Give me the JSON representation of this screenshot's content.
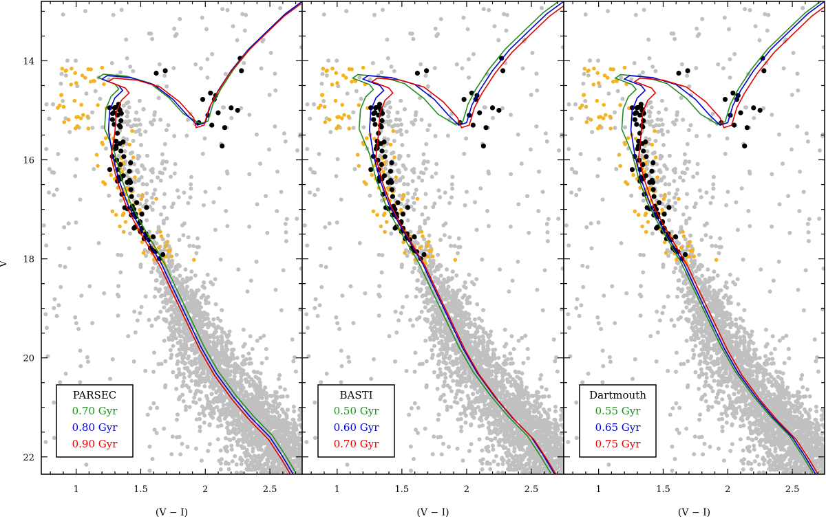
{
  "figure": {
    "ylabel": "V",
    "xlabel": "(V − I)"
  },
  "chart_data": [
    {
      "type": "scatter",
      "panel": "PARSEC",
      "xlabel": "(V − I)",
      "ylabel": "V",
      "xlim": [
        0.73,
        2.75
      ],
      "ylim": [
        22.35,
        12.8
      ],
      "y_inverted": true,
      "xticks": [
        1,
        1.5,
        2,
        2.5
      ],
      "xtick_labels": [
        "1",
        "1.5",
        "2",
        "2.5"
      ],
      "yticks": [
        14,
        16,
        18,
        20,
        22
      ],
      "ytick_labels": [
        "14",
        "16",
        "18",
        "20",
        "22"
      ],
      "legend": {
        "title": "PARSEC",
        "location": "lower-left",
        "entries": [
          {
            "label": "0.70 Gyr",
            "color": "#228b22"
          },
          {
            "label": "0.80 Gyr",
            "color": "#0000cc"
          },
          {
            "label": "0.90 Gyr",
            "color": "#e00000"
          }
        ]
      },
      "series": [
        {
          "name": "0.70 Gyr",
          "color": "#228b22",
          "shift": [
            0.02,
            -0.03
          ],
          "turnoff_dx": -0.05
        },
        {
          "name": "0.80 Gyr",
          "color": "#0000cc",
          "shift": [
            0.0,
            0.0
          ],
          "turnoff_dx": 0.0
        },
        {
          "name": "0.90 Gyr",
          "color": "#e00000",
          "shift": [
            -0.01,
            0.05
          ],
          "turnoff_dx": 0.06
        }
      ],
      "field_stars_color": "#c0c0c0",
      "candidate_color": "#f5b21c",
      "member_color": "#000000"
    },
    {
      "type": "scatter",
      "panel": "BASTI",
      "xlabel": "(V − I)",
      "ylabel": "V",
      "xlim": [
        0.73,
        2.75
      ],
      "ylim": [
        22.35,
        12.8
      ],
      "y_inverted": true,
      "xticks": [
        1,
        1.5,
        2,
        2.5
      ],
      "xtick_labels": [
        "1",
        "1.5",
        "2",
        "2.5"
      ],
      "yticks": [
        14,
        16,
        18,
        20,
        22
      ],
      "ytick_labels": [
        "14",
        "16",
        "18",
        "20",
        "22"
      ],
      "legend": {
        "title": "BASTI",
        "location": "lower-left",
        "entries": [
          {
            "label": "0.50 Gyr",
            "color": "#228b22"
          },
          {
            "label": "0.60 Gyr",
            "color": "#0000cc"
          },
          {
            "label": "0.70 Gyr",
            "color": "#e00000"
          }
        ]
      },
      "series": [
        {
          "name": "0.50 Gyr",
          "color": "#228b22",
          "shift": [
            -0.03,
            -0.02
          ],
          "turnoff_dx": -0.05
        },
        {
          "name": "0.60 Gyr",
          "color": "#0000cc",
          "shift": [
            0.0,
            0.0
          ],
          "turnoff_dx": 0.0
        },
        {
          "name": "0.70 Gyr",
          "color": "#e00000",
          "shift": [
            0.02,
            0.05
          ],
          "turnoff_dx": 0.05
        }
      ],
      "field_stars_color": "#c0c0c0",
      "candidate_color": "#f5b21c",
      "member_color": "#000000"
    },
    {
      "type": "scatter",
      "panel": "Dartmouth",
      "xlabel": "(V − I)",
      "ylabel": "V",
      "xlim": [
        0.73,
        2.75
      ],
      "ylim": [
        22.35,
        12.8
      ],
      "y_inverted": true,
      "xticks": [
        1,
        1.5,
        2,
        2.5
      ],
      "xtick_labels": [
        "1",
        "1.5",
        "2",
        "2.5"
      ],
      "yticks": [
        14,
        16,
        18,
        20,
        22
      ],
      "ytick_labels": [
        "14",
        "16",
        "18",
        "20",
        "22"
      ],
      "legend": {
        "title": "Dartmouth",
        "location": "lower-left",
        "entries": [
          {
            "label": "0.55 Gyr",
            "color": "#228b22"
          },
          {
            "label": "0.65 Gyr",
            "color": "#0000cc"
          },
          {
            "label": "0.75 Gyr",
            "color": "#e00000"
          }
        ]
      },
      "series": [
        {
          "name": "0.55 Gyr",
          "color": "#228b22",
          "shift": [
            -0.02,
            -0.02
          ],
          "turnoff_dx": -0.05
        },
        {
          "name": "0.65 Gyr",
          "color": "#0000cc",
          "shift": [
            0.0,
            0.0
          ],
          "turnoff_dx": 0.0
        },
        {
          "name": "0.75 Gyr",
          "color": "#e00000",
          "shift": [
            0.03,
            0.05
          ],
          "turnoff_dx": 0.05
        }
      ],
      "field_stars_color": "#c0c0c0",
      "candidate_color": "#f5b21c",
      "member_color": "#000000"
    }
  ],
  "isochrone_base": [
    [
      2.68,
      22.35
    ],
    [
      2.6,
      22.0
    ],
    [
      2.5,
      21.6
    ],
    [
      2.35,
      21.2
    ],
    [
      2.22,
      20.8
    ],
    [
      2.08,
      20.3
    ],
    [
      1.97,
      19.8
    ],
    [
      1.86,
      19.2
    ],
    [
      1.75,
      18.6
    ],
    [
      1.66,
      18.1
    ],
    [
      1.57,
      17.7
    ],
    [
      1.48,
      17.3
    ],
    [
      1.4,
      16.9
    ],
    [
      1.33,
      16.4
    ],
    [
      1.28,
      15.9
    ],
    [
      1.25,
      15.4
    ],
    [
      1.26,
      15.0
    ],
    [
      1.3,
      14.75
    ],
    [
      1.36,
      14.6
    ],
    [
      1.33,
      14.5
    ],
    [
      1.2,
      14.37
    ],
    [
      1.24,
      14.3
    ],
    [
      1.42,
      14.34
    ],
    [
      1.6,
      14.48
    ],
    [
      1.75,
      14.78
    ],
    [
      1.86,
      15.1
    ],
    [
      1.94,
      15.3
    ],
    [
      2.0,
      15.25
    ],
    [
      2.04,
      14.9
    ],
    [
      2.1,
      14.6
    ],
    [
      2.2,
      14.2
    ],
    [
      2.33,
      13.78
    ],
    [
      2.48,
      13.4
    ],
    [
      2.62,
      13.05
    ],
    [
      2.75,
      12.8
    ]
  ],
  "red_clump_giants": [
    [
      1.98,
      14.78
    ],
    [
      2.04,
      14.65
    ],
    [
      2.07,
      14.78
    ],
    [
      2.02,
      15.1
    ],
    [
      2.1,
      15.05
    ],
    [
      2.15,
      15.35
    ],
    [
      1.95,
      15.25
    ],
    [
      2.13,
      15.72
    ],
    [
      2.25,
      15.0
    ],
    [
      2.28,
      14.2
    ],
    [
      2.05,
      15.3
    ],
    [
      2.2,
      14.95
    ],
    [
      2.08,
      14.7
    ]
  ],
  "upper_giants": [
    [
      1.62,
      14.25
    ],
    [
      1.69,
      14.2
    ],
    [
      2.27,
      13.95
    ]
  ]
}
